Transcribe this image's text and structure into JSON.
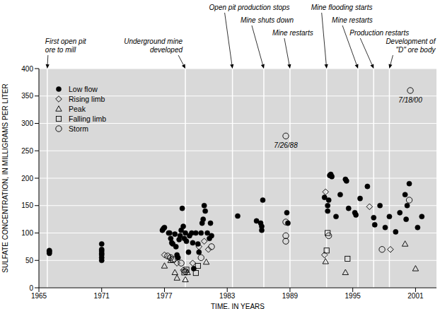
{
  "chart_data": {
    "type": "scatter",
    "x_label": "TIME, IN YEARS",
    "y_label": "SULFATE CONCENTRATION, IN MILLIGRAMS PER LITER",
    "xlim": [
      1965,
      2003
    ],
    "xticks": [
      1965,
      1971,
      1977,
      1983,
      1989,
      1995,
      2001
    ],
    "ylim": [
      0,
      400
    ],
    "yticks": [
      0,
      50,
      100,
      150,
      200,
      250,
      300,
      350,
      400
    ],
    "grid": true,
    "legend": "upper left",
    "series": [
      {
        "name": "Low flow",
        "marker": "filled_circle",
        "color": "#000000",
        "x": [
          1966.0,
          1966.0,
          1966.0,
          1971,
          1971,
          1971,
          1971,
          1971,
          1971,
          1971,
          1976.8,
          1976.9,
          1977.0,
          1977.4,
          1977.5,
          1977.6,
          1977.7,
          1977.8,
          1978.0,
          1978.1,
          1978.2,
          1978.3,
          1978.4,
          1978.5,
          1978.6,
          1978.7,
          1978.8,
          1978.9,
          1979.0,
          1979.1,
          1979.3,
          1979.4,
          1979.6,
          1979.7,
          1979.8,
          1980.0,
          1980.2,
          1980.3,
          1980.5,
          1980.6,
          1980.7,
          1980.8,
          1980.9,
          1981.1,
          1981.3,
          1981.4,
          1981.5,
          1984.0,
          1985.8,
          1986.2,
          1986.3,
          1986.3,
          1986.4,
          1988.7,
          1988.8,
          1992.3,
          1992.6,
          1992.6,
          1992.7,
          1992.8,
          1992.9,
          1993.0,
          1993.4,
          1993.8,
          1994.3,
          1994.4,
          1994.6,
          1995.2,
          1995.3,
          1995.7,
          1996.4,
          1997.0,
          1997.1,
          1997.6,
          1998.1,
          1998.5,
          1999.1,
          1999.5,
          2000.0,
          2000.1,
          2000.2,
          2000.4,
          2001.2,
          2001.6
        ],
        "values": [
          66,
          63,
          68,
          50,
          55,
          60,
          63,
          67,
          70,
          80,
          105,
          108,
          110,
          100,
          100,
          90,
          82,
          80,
          98,
          75,
          60,
          55,
          88,
          95,
          105,
          145,
          112,
          90,
          100,
          85,
          65,
          95,
          100,
          82,
          35,
          100,
          80,
          65,
          100,
          118,
          125,
          150,
          140,
          100,
          90,
          118,
          95,
          131,
          122,
          118,
          112,
          105,
          160,
          137,
          118,
          165,
          150,
          140,
          160,
          205,
          207,
          203,
          130,
          170,
          198,
          195,
          145,
          137,
          133,
          163,
          185,
          128,
          115,
          150,
          110,
          130,
          102,
          137,
          170,
          125,
          150,
          190,
          110,
          130
        ]
      },
      {
        "name": "Rising limb",
        "marker": "diamond",
        "color": "#000000",
        "x": [
          1977.0,
          1977.5,
          1978.2,
          1978.8,
          1979.7,
          1980.3,
          1980.8,
          1981.2,
          1992.3,
          1992.4,
          1996.6,
          1998.6
        ],
        "values": [
          60,
          55,
          45,
          32,
          45,
          75,
          85,
          70,
          60,
          175,
          148,
          70
        ]
      },
      {
        "name": "Peak",
        "marker": "triangle",
        "color": "#000000",
        "x": [
          1977.0,
          1977.6,
          1978.0,
          1978.2,
          1979.0,
          1979.2,
          1981.0,
          1992.4,
          1994.3,
          2000.0,
          2001.0
        ],
        "values": [
          40,
          50,
          28,
          18,
          15,
          28,
          47,
          48,
          28,
          80,
          35
        ]
      },
      {
        "name": "Falling limb",
        "marker": "square",
        "color": "#000000",
        "x": [
          1977.8,
          1978.9,
          1979.1,
          1980.0,
          1980.2,
          1992.5,
          1992.6,
          1994.5
        ],
        "values": [
          52,
          28,
          33,
          27,
          40,
          68,
          100,
          53
        ]
      },
      {
        "name": "Storm",
        "marker": "open_circle",
        "color": "#000000",
        "x": [
          1977.3,
          1977.6,
          1978.6,
          1979.0,
          1980.5,
          1981.5,
          1988.6,
          1988.6,
          1988.6,
          1988.6,
          1992.7,
          1997.8,
          2000.4,
          2000.5
        ],
        "values": [
          58,
          55,
          45,
          30,
          55,
          75,
          277,
          120,
          95,
          85,
          95,
          70,
          160,
          360
        ]
      }
    ],
    "events": [
      {
        "x": 1965.8,
        "label": [
          "First open pit",
          "ore to mill"
        ]
      },
      {
        "x": 1979.0,
        "label": [
          "Underground mine",
          "developed"
        ]
      },
      {
        "x": 1983.5,
        "label": [
          "Open pit production stops"
        ]
      },
      {
        "x": 1986.5,
        "label": [
          "Mine shuts down"
        ]
      },
      {
        "x": 1989.0,
        "label": [
          "Mine restarts"
        ]
      },
      {
        "x": 1992.5,
        "label": [
          "Mine flooding starts"
        ]
      },
      {
        "x": 1995.5,
        "label": [
          "Mine restarts"
        ]
      },
      {
        "x": 1997.0,
        "label": [
          "Production restarts"
        ]
      },
      {
        "x": 1998.5,
        "label": [
          "Development of",
          "\"D\" ore body"
        ]
      }
    ],
    "annotations": [
      {
        "x": 1988.6,
        "y": 277,
        "text": "7/26/88"
      },
      {
        "x": 2000.5,
        "y": 360,
        "text": "7/18/00"
      }
    ]
  }
}
